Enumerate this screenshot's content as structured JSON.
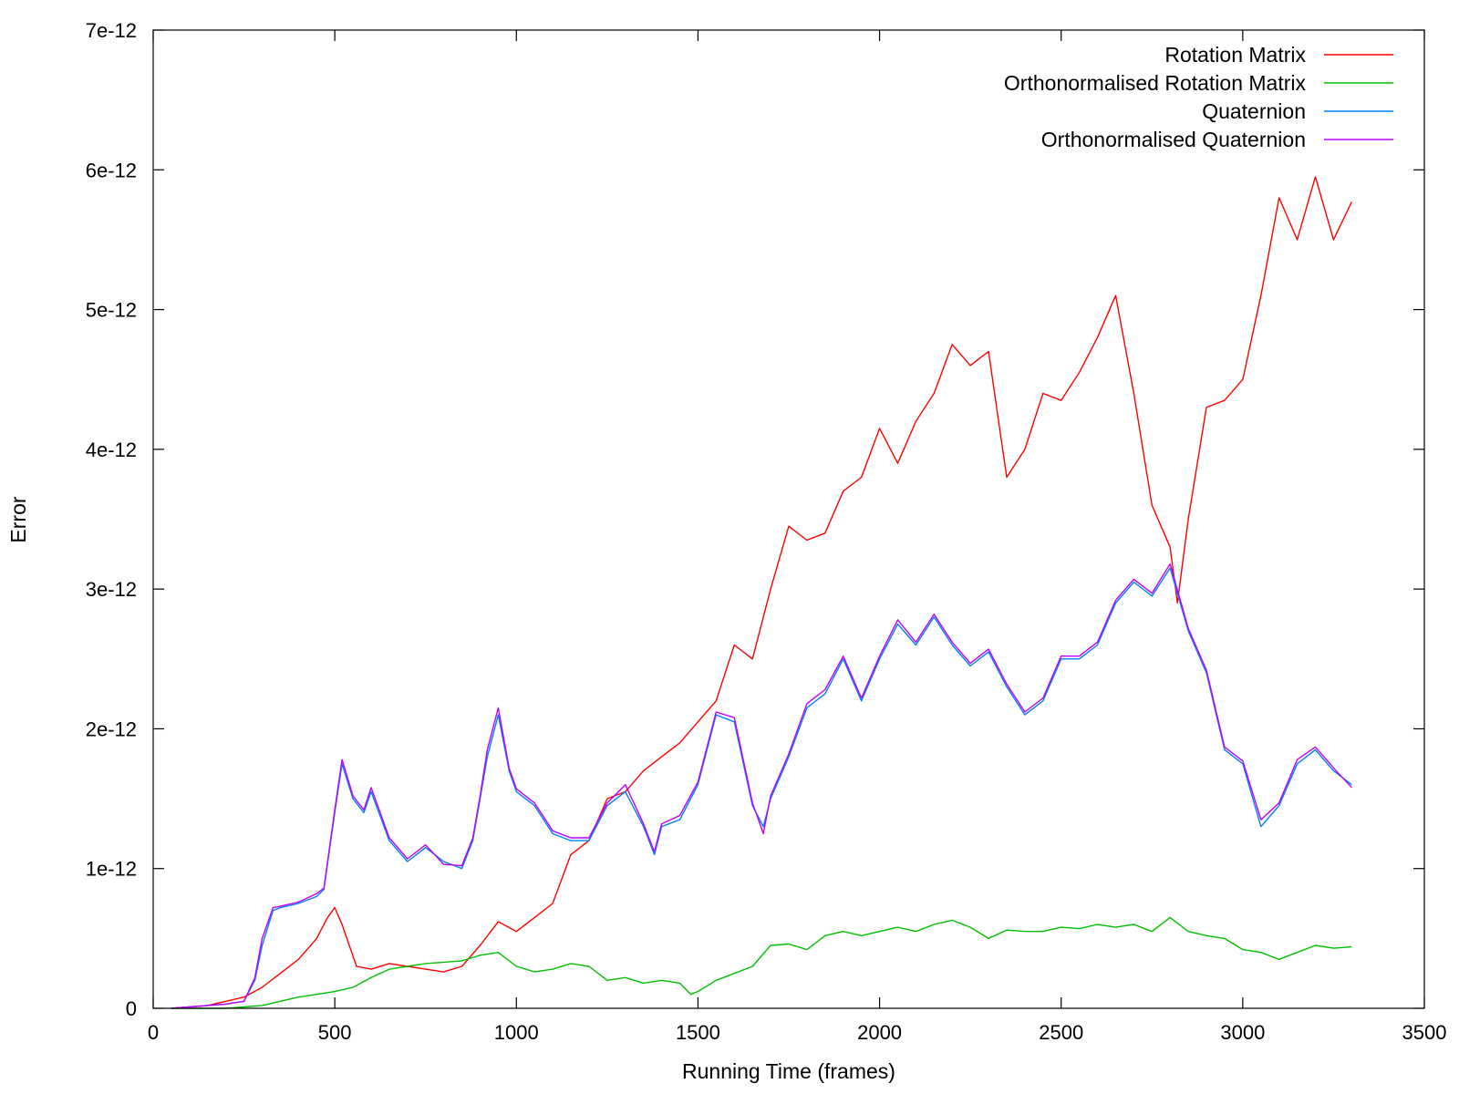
{
  "chart_data": {
    "type": "line",
    "title": "",
    "xlabel": "Running Time (frames)",
    "ylabel": "Error",
    "xlim": [
      0,
      3500
    ],
    "ylim": [
      0,
      7e-12
    ],
    "x_ticks": [
      0,
      500,
      1000,
      1500,
      2000,
      2500,
      3000,
      3500
    ],
    "x_tick_labels": [
      "0",
      "500",
      "1000",
      "1500",
      "2000",
      "2500",
      "3000",
      "3500"
    ],
    "y_ticks": [
      0,
      1e-12,
      2e-12,
      3e-12,
      4e-12,
      5e-12,
      6e-12,
      7e-12
    ],
    "y_tick_labels": [
      "0",
      "1e-12",
      "2e-12",
      "3e-12",
      "4e-12",
      "5e-12",
      "6e-12",
      "7e-12"
    ],
    "grid": false,
    "legend_position": "top-right",
    "series": [
      {
        "name": "Rotation Matrix",
        "color": "#ff0000",
        "x": [
          50,
          100,
          150,
          200,
          250,
          300,
          350,
          400,
          450,
          480,
          500,
          520,
          560,
          600,
          650,
          700,
          750,
          800,
          850,
          900,
          950,
          1000,
          1050,
          1100,
          1150,
          1200,
          1250,
          1300,
          1350,
          1400,
          1450,
          1500,
          1550,
          1600,
          1650,
          1700,
          1750,
          1800,
          1850,
          1900,
          1950,
          2000,
          2050,
          2100,
          2150,
          2200,
          2250,
          2300,
          2350,
          2400,
          2450,
          2500,
          2550,
          2600,
          2650,
          2700,
          2750,
          2800,
          2820,
          2850,
          2900,
          2950,
          3000,
          3050,
          3100,
          3150,
          3200,
          3250,
          3300
        ],
        "y": [
          0,
          1e-14,
          2e-14,
          5e-14,
          8e-14,
          1.5e-13,
          2.5e-13,
          3.5e-13,
          5e-13,
          6.5e-13,
          7.2e-13,
          6e-13,
          3e-13,
          2.8e-13,
          3.2e-13,
          3e-13,
          2.8e-13,
          2.6e-13,
          3e-13,
          4.5e-13,
          6.2e-13,
          5.5e-13,
          6.5e-13,
          7.5e-13,
          1.1e-12,
          1.2e-12,
          1.5e-12,
          1.55e-12,
          1.7e-12,
          1.8e-12,
          1.9e-12,
          2.05e-12,
          2.2e-12,
          2.6e-12,
          2.5e-12,
          3e-12,
          3.45e-12,
          3.35e-12,
          3.4e-12,
          3.7e-12,
          3.8e-12,
          4.15e-12,
          3.9e-12,
          4.2e-12,
          4.4e-12,
          4.75e-12,
          4.6e-12,
          4.7e-12,
          3.8e-12,
          4e-12,
          4.4e-12,
          4.35e-12,
          4.55e-12,
          4.8e-12,
          5.1e-12,
          4.4e-12,
          3.6e-12,
          3.3e-12,
          2.9e-12,
          3.5e-12,
          4.3e-12,
          4.35e-12,
          4.5e-12,
          5.1e-12,
          5.8e-12,
          5.5e-12,
          5.95e-12,
          5.5e-12,
          5.77e-12
        ]
      },
      {
        "name": "Orthonormalised Rotation Matrix",
        "color": "#00c000",
        "x": [
          50,
          100,
          150,
          200,
          250,
          300,
          350,
          400,
          450,
          500,
          550,
          600,
          650,
          700,
          750,
          800,
          850,
          900,
          950,
          1000,
          1050,
          1100,
          1150,
          1200,
          1250,
          1300,
          1350,
          1400,
          1450,
          1480,
          1500,
          1550,
          1600,
          1650,
          1700,
          1750,
          1800,
          1850,
          1900,
          1950,
          2000,
          2050,
          2100,
          2150,
          2200,
          2250,
          2300,
          2350,
          2400,
          2450,
          2500,
          2550,
          2600,
          2650,
          2700,
          2750,
          2800,
          2850,
          2900,
          2950,
          3000,
          3050,
          3100,
          3150,
          3200,
          3250,
          3300
        ],
        "y": [
          0,
          0,
          0,
          0,
          1e-14,
          2e-14,
          5e-14,
          8e-14,
          1e-13,
          1.2e-13,
          1.5e-13,
          2.2e-13,
          2.8e-13,
          3e-13,
          3.2e-13,
          3.3e-13,
          3.4e-13,
          3.8e-13,
          4e-13,
          3e-13,
          2.6e-13,
          2.8e-13,
          3.2e-13,
          3e-13,
          2e-13,
          2.2e-13,
          1.8e-13,
          2e-13,
          1.8e-13,
          1e-13,
          1.2e-13,
          2e-13,
          2.5e-13,
          3e-13,
          4.5e-13,
          4.6e-13,
          4.2e-13,
          5.2e-13,
          5.5e-13,
          5.2e-13,
          5.5e-13,
          5.8e-13,
          5.5e-13,
          6e-13,
          6.3e-13,
          5.8e-13,
          5e-13,
          5.6e-13,
          5.5e-13,
          5.5e-13,
          5.8e-13,
          5.7e-13,
          6e-13,
          5.8e-13,
          6e-13,
          5.5e-13,
          6.5e-13,
          5.5e-13,
          5.2e-13,
          5e-13,
          4.2e-13,
          4e-13,
          3.5e-13,
          4e-13,
          4.5e-13,
          4.3e-13,
          4.4e-13
        ]
      },
      {
        "name": "Quaternion",
        "color": "#0080ff",
        "x": [
          50,
          100,
          150,
          200,
          250,
          280,
          300,
          330,
          350,
          400,
          450,
          470,
          500,
          520,
          550,
          580,
          600,
          650,
          700,
          750,
          800,
          850,
          880,
          900,
          920,
          950,
          980,
          1000,
          1050,
          1100,
          1150,
          1200,
          1250,
          1300,
          1350,
          1380,
          1400,
          1450,
          1500,
          1550,
          1600,
          1650,
          1680,
          1700,
          1750,
          1800,
          1850,
          1900,
          1950,
          2000,
          2050,
          2100,
          2150,
          2200,
          2250,
          2300,
          2350,
          2400,
          2450,
          2500,
          2550,
          2600,
          2650,
          2700,
          2750,
          2800,
          2850,
          2900,
          2950,
          3000,
          3050,
          3100,
          3150,
          3200,
          3250,
          3300
        ],
        "y": [
          0,
          1e-14,
          2e-14,
          3e-14,
          5e-14,
          2e-13,
          4.5e-13,
          7e-13,
          7.2e-13,
          7.5e-13,
          8e-13,
          8.5e-13,
          1.4e-12,
          1.75e-12,
          1.5e-12,
          1.4e-12,
          1.55e-12,
          1.2e-12,
          1.05e-12,
          1.15e-12,
          1.05e-12,
          1e-12,
          1.2e-12,
          1.5e-12,
          1.8e-12,
          2.1e-12,
          1.7e-12,
          1.55e-12,
          1.45e-12,
          1.25e-12,
          1.2e-12,
          1.2e-12,
          1.45e-12,
          1.55e-12,
          1.3e-12,
          1.1e-12,
          1.3e-12,
          1.35e-12,
          1.6e-12,
          2.1e-12,
          2.05e-12,
          1.45e-12,
          1.3e-12,
          1.5e-12,
          1.8e-12,
          2.15e-12,
          2.25e-12,
          2.5e-12,
          2.2e-12,
          2.5e-12,
          2.75e-12,
          2.6e-12,
          2.8e-12,
          2.6e-12,
          2.45e-12,
          2.55e-12,
          2.3e-12,
          2.1e-12,
          2.2e-12,
          2.5e-12,
          2.5e-12,
          2.6e-12,
          2.9e-12,
          3.05e-12,
          2.95e-12,
          3.15e-12,
          2.7e-12,
          2.4e-12,
          1.85e-12,
          1.75e-12,
          1.3e-12,
          1.45e-12,
          1.75e-12,
          1.85e-12,
          1.7e-12,
          1.6e-12
        ]
      },
      {
        "name": "Orthonormalised Quaternion",
        "color": "#c000ff",
        "x": [
          50,
          100,
          150,
          200,
          250,
          280,
          300,
          330,
          350,
          400,
          450,
          470,
          500,
          520,
          550,
          580,
          600,
          650,
          700,
          750,
          800,
          850,
          880,
          900,
          920,
          950,
          980,
          1000,
          1050,
          1100,
          1150,
          1200,
          1250,
          1300,
          1350,
          1380,
          1400,
          1450,
          1500,
          1550,
          1600,
          1650,
          1680,
          1700,
          1750,
          1800,
          1850,
          1900,
          1950,
          2000,
          2050,
          2100,
          2150,
          2200,
          2250,
          2300,
          2350,
          2400,
          2450,
          2500,
          2550,
          2600,
          2650,
          2700,
          2750,
          2800,
          2850,
          2900,
          2950,
          3000,
          3050,
          3100,
          3150,
          3200,
          3250,
          3300
        ],
        "y": [
          0,
          1e-14,
          2e-14,
          3e-14,
          5e-14,
          2.2e-13,
          5e-13,
          7.2e-13,
          7.3e-13,
          7.6e-13,
          8.2e-13,
          8.6e-13,
          1.42e-12,
          1.78e-12,
          1.52e-12,
          1.42e-12,
          1.58e-12,
          1.22e-12,
          1.07e-12,
          1.17e-12,
          1.03e-12,
          1.02e-12,
          1.22e-12,
          1.52e-12,
          1.85e-12,
          2.15e-12,
          1.72e-12,
          1.57e-12,
          1.47e-12,
          1.27e-12,
          1.22e-12,
          1.22e-12,
          1.47e-12,
          1.6e-12,
          1.32e-12,
          1.12e-12,
          1.32e-12,
          1.38e-12,
          1.62e-12,
          2.12e-12,
          2.08e-12,
          1.47e-12,
          1.25e-12,
          1.52e-12,
          1.82e-12,
          2.18e-12,
          2.28e-12,
          2.52e-12,
          2.22e-12,
          2.52e-12,
          2.78e-12,
          2.62e-12,
          2.82e-12,
          2.62e-12,
          2.47e-12,
          2.57e-12,
          2.32e-12,
          2.12e-12,
          2.22e-12,
          2.52e-12,
          2.52e-12,
          2.62e-12,
          2.92e-12,
          3.07e-12,
          2.97e-12,
          3.18e-12,
          2.72e-12,
          2.42e-12,
          1.87e-12,
          1.77e-12,
          1.35e-12,
          1.47e-12,
          1.78e-12,
          1.87e-12,
          1.72e-12,
          1.58e-12
        ]
      }
    ]
  }
}
